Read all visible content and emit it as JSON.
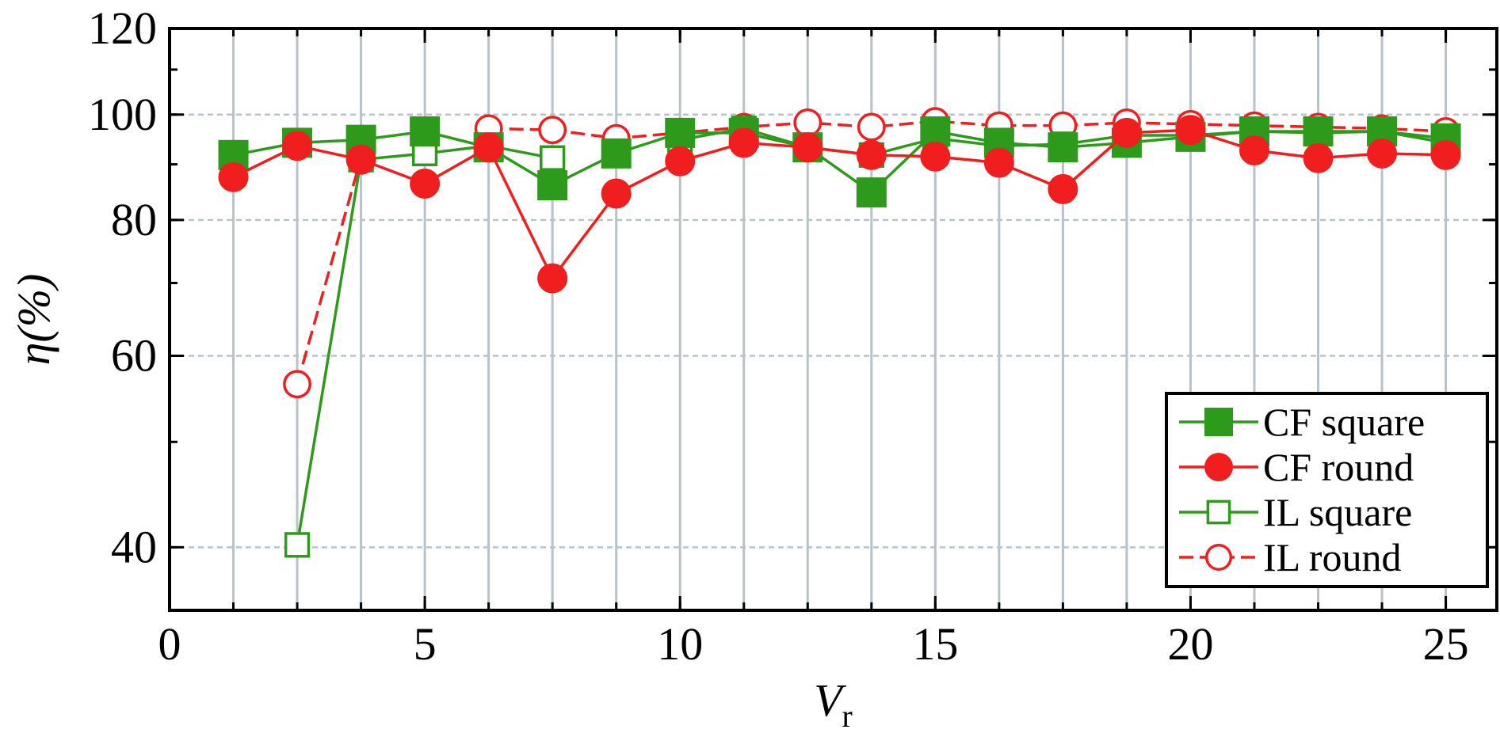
{
  "chart_data": {
    "type": "line",
    "title": "",
    "xlabel": "V",
    "xlabel_sub": "r",
    "ylabel": "η(%)",
    "xlim": [
      0,
      26
    ],
    "ylim": [
      35,
      120
    ],
    "y_scale": "log",
    "xticks": [
      0,
      5,
      10,
      15,
      20,
      25
    ],
    "yticks": [
      40,
      60,
      80,
      100,
      120
    ],
    "grid": true,
    "legend_position": "bottom-right",
    "x": [
      1.25,
      2.5,
      3.75,
      5.0,
      6.25,
      7.5,
      8.75,
      10.0,
      11.25,
      12.5,
      13.75,
      15.0,
      16.25,
      17.5,
      18.75,
      20.0,
      21.25,
      22.5,
      23.75,
      25.0
    ],
    "series": [
      {
        "name": "CF square",
        "color": "#2e9a1c",
        "marker": "square",
        "filled": true,
        "dashed": false,
        "values": [
          91.8,
          94.2,
          94.8,
          96.5,
          93.3,
          86.1,
          92.1,
          96.2,
          96.2,
          93.3,
          84.8,
          96.5,
          94.2,
          93.3,
          94.2,
          95.4,
          96.5,
          96.5,
          96.5,
          95.1
        ]
      },
      {
        "name": "CF round",
        "color": "#f01e1e",
        "marker": "circle",
        "filled": true,
        "dashed": false,
        "values": [
          87.6,
          93.6,
          90.9,
          86.4,
          93.3,
          70.7,
          84.6,
          90.6,
          94.2,
          93.3,
          91.8,
          91.5,
          90.3,
          85.4,
          96.2,
          96.8,
          92.7,
          91.2,
          92.1,
          91.8
        ]
      },
      {
        "name": "IL square",
        "color": "#2e9a1c",
        "marker": "square",
        "filled": false,
        "dashed": false,
        "values": [
          null,
          40.2,
          90.9,
          92.1,
          93.6,
          91.2,
          null,
          94.8,
          97.1,
          93.3,
          91.8,
          95.1,
          93.6,
          93.9,
          95.7,
          95.7,
          96.5,
          96.2,
          96.5,
          94.2
        ]
      },
      {
        "name": "IL round",
        "color": "#f01e1e",
        "marker": "circle",
        "filled": false,
        "dashed": true,
        "values": [
          null,
          56.5,
          91.2,
          null,
          97.1,
          96.8,
          95.1,
          96.2,
          97.4,
          98.3,
          97.4,
          98.6,
          97.7,
          97.7,
          98.3,
          98.0,
          97.7,
          97.4,
          97.1,
          96.5
        ]
      }
    ]
  }
}
